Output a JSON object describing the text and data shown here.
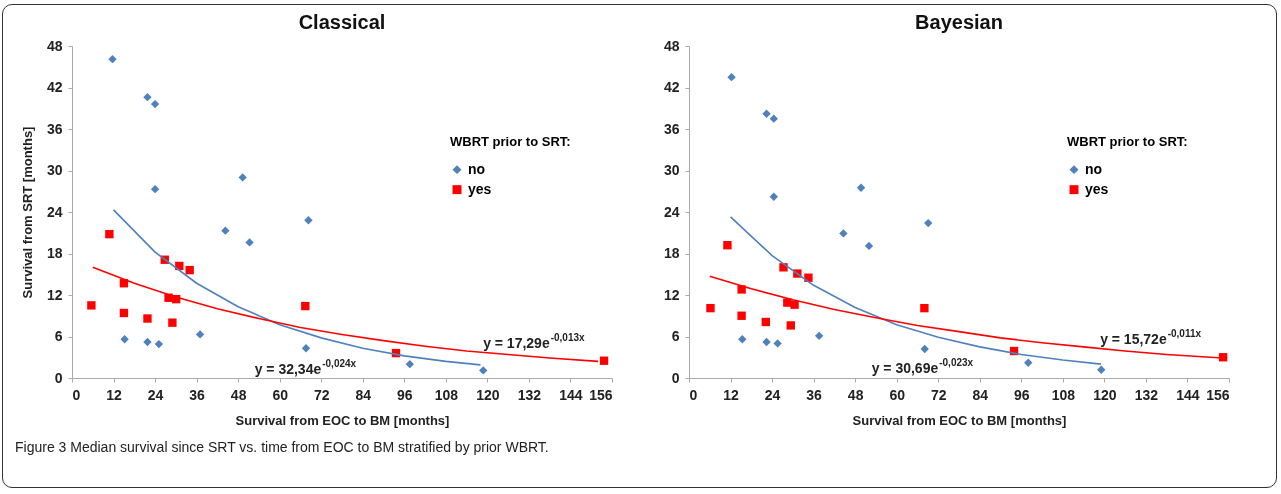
{
  "chart_data": [
    {
      "type": "scatter",
      "title": "Classical",
      "xlabel": "Survival from EOC to BM [months]",
      "ylabel": "Survival from SRT [months]",
      "legend_title": "WBRT prior  to SRT:",
      "legend": "right",
      "xlim": [
        0,
        156
      ],
      "xticks": [
        0,
        12,
        24,
        36,
        48,
        60,
        72,
        84,
        96,
        108,
        120,
        132,
        144,
        156
      ],
      "ylim": [
        0,
        48
      ],
      "yticks": [
        0,
        6,
        12,
        18,
        24,
        30,
        36,
        42,
        48
      ],
      "series": [
        {
          "name": "no",
          "color": "#4f81bd",
          "marker": "diamond",
          "x": [
            11.7,
            21.8,
            24.0,
            24.0,
            49.3,
            44.3,
            51.3,
            68.3,
            15.2,
            21.8,
            25.1,
            37.0,
            67.6,
            97.6,
            118.8
          ],
          "values": [
            46.1,
            40.6,
            39.6,
            27.3,
            29.0,
            21.3,
            19.6,
            22.8,
            5.6,
            5.2,
            4.9,
            6.3,
            4.3,
            2.0,
            1.1
          ]
        },
        {
          "name": "yes",
          "color": "#ff0000",
          "marker": "square",
          "x": [
            5.6,
            10.8,
            15.0,
            15.0,
            21.8,
            26.8,
            31.0,
            34.0,
            27.9,
            30.1,
            29.0,
            67.4,
            93.6,
            153.7
          ],
          "values": [
            10.5,
            20.8,
            13.7,
            9.4,
            8.6,
            17.1,
            16.2,
            15.6,
            11.6,
            11.4,
            8.0,
            10.4,
            3.6,
            2.5
          ]
        },
        {
          "type": "line",
          "color": "#4f81bd",
          "marker": "none",
          "x": [
            12,
            24,
            36,
            48,
            60,
            72,
            84,
            96,
            108,
            118
          ],
          "values": [
            24.3,
            18.2,
            13.7,
            10.3,
            7.7,
            5.8,
            4.3,
            3.2,
            2.4,
            1.9
          ]
        },
        {
          "type": "line",
          "color": "#ff0000",
          "marker": "none",
          "x": [
            6,
            18,
            30,
            42,
            54,
            66,
            78,
            90,
            102,
            114,
            126,
            138,
            152
          ],
          "values": [
            16.0,
            13.7,
            11.7,
            10.0,
            8.6,
            7.3,
            6.3,
            5.4,
            4.6,
            3.9,
            3.4,
            2.9,
            2.4
          ]
        }
      ],
      "annotations": [
        "y = 32,34e$^{-0,024x}$",
        "y = 17,29e$^{-0,013x}$"
      ]
    },
    {
      "type": "scatter",
      "title": "Bayesian",
      "xlabel": "Survival from EOC to BM [months]",
      "legend_title": "WBRT prior  to SRT:",
      "legend": "right",
      "xlim": [
        0,
        156
      ],
      "xticks": [
        0,
        12,
        24,
        36,
        48,
        60,
        72,
        84,
        96,
        108,
        120,
        132,
        144,
        156
      ],
      "ylim": [
        0,
        48
      ],
      "yticks": [
        0,
        6,
        12,
        18,
        24,
        30,
        36,
        42,
        48
      ],
      "series": [
        {
          "name": "no",
          "color": "#4f81bd",
          "marker": "diamond",
          "x": [
            12.3,
            22.4,
            24.5,
            24.5,
            49.7,
            44.6,
            52.0,
            69.1,
            15.4,
            22.4,
            25.6,
            37.6,
            68.1,
            98.0,
            119.1
          ],
          "values": [
            43.5,
            38.2,
            37.5,
            26.2,
            27.5,
            20.9,
            19.1,
            22.4,
            5.6,
            5.2,
            5.0,
            6.1,
            4.2,
            2.2,
            1.2
          ]
        },
        {
          "name": "yes",
          "color": "#ff0000",
          "marker": "square",
          "x": [
            6.2,
            11.1,
            15.2,
            15.2,
            22.2,
            27.3,
            31.3,
            34.5,
            28.4,
            30.5,
            29.4,
            68.0,
            93.9,
            154.3
          ],
          "values": [
            10.1,
            19.2,
            12.8,
            9.0,
            8.1,
            16.0,
            15.1,
            14.5,
            10.9,
            10.6,
            7.6,
            10.1,
            3.9,
            3.0
          ]
        },
        {
          "type": "line",
          "color": "#4f81bd",
          "marker": "none",
          "x": [
            12,
            24,
            36,
            48,
            60,
            72,
            84,
            96,
            108,
            119
          ],
          "values": [
            23.3,
            17.7,
            13.4,
            10.2,
            7.7,
            5.9,
            4.5,
            3.4,
            2.6,
            2.0
          ]
        },
        {
          "type": "line",
          "color": "#ff0000",
          "marker": "none",
          "x": [
            6,
            18,
            30,
            42,
            54,
            66,
            78,
            90,
            102,
            114,
            126,
            138,
            154
          ],
          "values": [
            14.7,
            12.9,
            11.3,
            9.9,
            8.7,
            7.6,
            6.7,
            5.8,
            5.1,
            4.5,
            3.9,
            3.4,
            2.9
          ]
        }
      ],
      "annotations": [
        "y = 30,69e$^{-0,023x}$",
        "y = 15,72e$^{-0,011x}$",
        "Figure 3 Median survival since SRT vs. time from EOC to BM stratified by prior WBRT."
      ]
    }
  ]
}
